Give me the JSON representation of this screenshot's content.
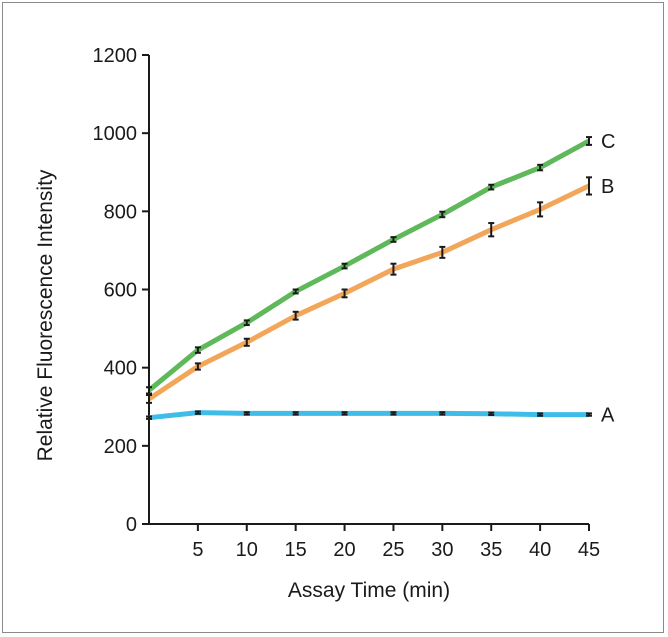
{
  "chart_data": {
    "type": "line",
    "title": "",
    "xlabel": "Assay Time (min)",
    "ylabel": "Relative Fluorescence Intensity",
    "xlim": [
      0,
      45
    ],
    "ylim": [
      0,
      1200
    ],
    "x_ticks": [
      5,
      10,
      15,
      20,
      25,
      30,
      35,
      40,
      45
    ],
    "y_ticks": [
      0,
      200,
      400,
      600,
      800,
      1000,
      1200
    ],
    "grid": false,
    "legend": "inline labels at line ends",
    "x": [
      0,
      5,
      10,
      15,
      20,
      25,
      30,
      35,
      40,
      45
    ],
    "series": [
      {
        "name": "C",
        "color": "#5fb85a",
        "values": [
          342,
          445,
          515,
          595,
          660,
          728,
          792,
          862,
          912,
          980
        ],
        "errors": [
          8,
          7,
          6,
          5,
          6,
          6,
          7,
          6,
          7,
          10
        ]
      },
      {
        "name": "B",
        "color": "#f2a65a",
        "values": [
          320,
          403,
          465,
          533,
          590,
          652,
          695,
          753,
          805,
          865
        ],
        "errors": [
          10,
          8,
          9,
          10,
          10,
          14,
          14,
          17,
          18,
          22
        ]
      },
      {
        "name": "A",
        "color": "#3fbde8",
        "values": [
          272,
          285,
          283,
          283,
          283,
          283,
          283,
          282,
          280,
          280
        ],
        "errors": [
          3,
          3,
          3,
          3,
          3,
          3,
          3,
          3,
          3,
          3
        ]
      }
    ]
  }
}
